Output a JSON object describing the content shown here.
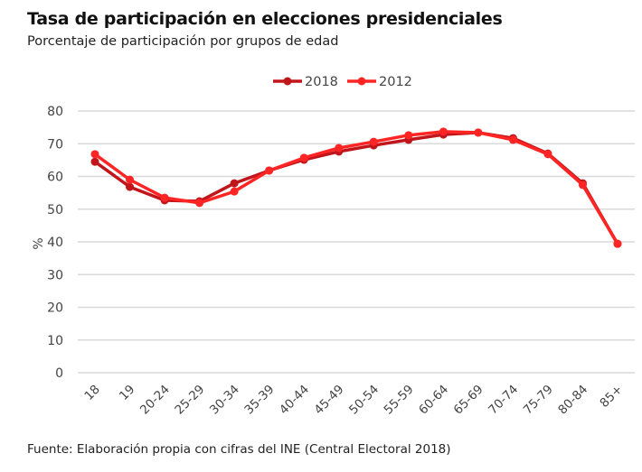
{
  "title": "Tasa de participación en elecciones presidenciales",
  "subtitle": "Porcentaje de participación por grupos de edad",
  "source": "Fuente: Elaboración propia con cifras del INE (Central Electoral 2018)",
  "chart_data": {
    "type": "line",
    "title": "Tasa de participación en elecciones presidenciales",
    "xlabel": "",
    "ylabel": "%",
    "ylim": [
      0,
      80
    ],
    "yticks": [
      0,
      10,
      20,
      30,
      40,
      50,
      60,
      70,
      80
    ],
    "grid": true,
    "legend_position": "top-center",
    "categories": [
      "18",
      "19",
      "20-24",
      "25-29",
      "30-34",
      "35-39",
      "40-44",
      "45-49",
      "50-54",
      "55-59",
      "60-64",
      "65-69",
      "70-74",
      "75-79",
      "80-84",
      "85+"
    ],
    "series": [
      {
        "name": "2018",
        "color": "#c0161b",
        "values": [
          64.5,
          56.8,
          52.7,
          52.4,
          57.9,
          61.8,
          65.1,
          67.6,
          69.5,
          71.2,
          72.8,
          73.4,
          71.7,
          67.0,
          57.9,
          39.4
        ]
      },
      {
        "name": "2012",
        "color": "#ff2525",
        "values": [
          66.8,
          59.0,
          53.5,
          51.9,
          55.4,
          61.8,
          65.7,
          68.7,
          70.6,
          72.6,
          73.7,
          73.4,
          71.2,
          66.8,
          57.4,
          39.4
        ]
      }
    ]
  }
}
